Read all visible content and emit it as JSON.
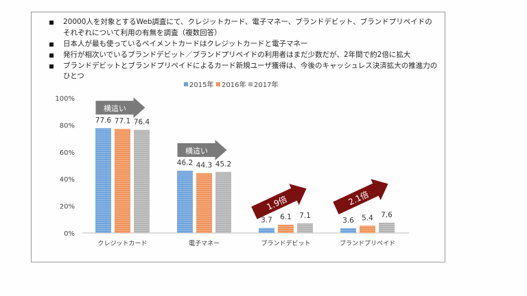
{
  "bullets": [
    "20000人を対象とするWeb調査にて、クレジットカード、電子マネー、ブランドデビット、ブランドプリペイドのそれぞれについて利用の有無を調査（複数回答）",
    "日本人が最も使っているペイメントカードはクレジットカードと電子マネー",
    "発行が相次いでいるブランドデビット／ブランドプリペイドの利用者はまだ少数だが、2年間で約2倍に拡大",
    "ブランドデビットとブランドプリペイドによるカード新規ユーザ獲得は、今後のキャッシュレス決済拡大の推進力のひとつ"
  ],
  "colors": {
    "s2015": "#6fa3dc",
    "s2016": "#f0935a",
    "s2017": "#b4b4b4",
    "flat_arrow": "#7a7a7a",
    "growth_arrow": "#7b1010"
  },
  "chart_data": {
    "type": "bar",
    "categories": [
      "クレジットカード",
      "電子マネー",
      "ブランドデビット",
      "ブランドプリペイド"
    ],
    "series": [
      {
        "name": "2015年",
        "values": [
          77.6,
          46.2,
          3.7,
          3.6
        ]
      },
      {
        "name": "2016年",
        "values": [
          77.1,
          44.3,
          6.1,
          5.4
        ]
      },
      {
        "name": "2017年",
        "values": [
          76.4,
          45.2,
          7.1,
          7.6
        ]
      }
    ],
    "ylim": [
      0,
      100
    ],
    "yticks": [
      "0%",
      "20%",
      "40%",
      "60%",
      "80%",
      "100%"
    ],
    "legend_position": "top",
    "annotations": [
      {
        "category": 0,
        "text": "横這い",
        "kind": "flat"
      },
      {
        "category": 1,
        "text": "横這い",
        "kind": "flat"
      },
      {
        "category": 2,
        "text": "1.9倍",
        "kind": "growth"
      },
      {
        "category": 3,
        "text": "2.1倍",
        "kind": "growth"
      }
    ]
  }
}
